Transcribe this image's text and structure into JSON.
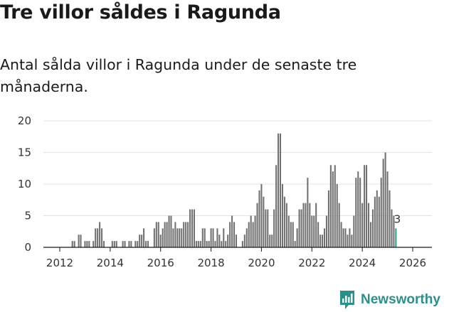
{
  "title": "Tre villor såldes i Ragunda",
  "subtitle": "Antal sålda villor i Ragunda under de senaste tre månaderna.",
  "brand": {
    "name": "Newsworthy",
    "icon": "newsworthy-logo-icon",
    "color": "#2c8f8a"
  },
  "chart_data": {
    "type": "bar",
    "title": "Tre villor såldes i Ragunda",
    "xlabel": "",
    "ylabel": "",
    "ylim": [
      0,
      20
    ],
    "yticks": [
      0,
      5,
      10,
      15,
      20
    ],
    "xticks": [
      "2012",
      "2014",
      "2016",
      "2018",
      "2020",
      "2022",
      "2024",
      "2026"
    ],
    "grid": true,
    "start": "2011-06",
    "colors": {
      "bar": "#707070",
      "highlight": "#2e9a94"
    },
    "highlight_label": "3",
    "values": [
      0,
      0,
      0,
      0,
      0,
      0,
      0,
      0,
      0,
      0,
      0,
      0,
      0,
      1,
      1,
      0,
      2,
      2,
      0,
      1,
      1,
      1,
      0,
      1,
      3,
      3,
      4,
      3,
      1,
      0,
      0,
      0,
      1,
      1,
      1,
      0,
      0,
      1,
      1,
      0,
      1,
      1,
      0,
      1,
      1,
      2,
      2,
      3,
      1,
      1,
      0,
      0,
      3,
      4,
      4,
      2,
      3,
      4,
      4,
      5,
      5,
      3,
      4,
      3,
      3,
      3,
      4,
      4,
      4,
      6,
      6,
      6,
      1,
      1,
      1,
      3,
      3,
      1,
      1,
      3,
      3,
      1,
      3,
      2,
      1,
      3,
      1,
      2,
      4,
      5,
      4,
      2,
      0,
      0,
      1,
      2,
      3,
      4,
      5,
      4,
      5,
      7,
      9,
      10,
      8,
      6,
      6,
      2,
      2,
      6,
      13,
      18,
      18,
      10,
      8,
      7,
      5,
      4,
      4,
      1,
      3,
      6,
      6,
      7,
      7,
      11,
      7,
      5,
      5,
      7,
      4,
      2,
      2,
      3,
      5,
      9,
      13,
      12,
      13,
      10,
      7,
      4,
      3,
      3,
      2,
      3,
      2,
      5,
      11,
      12,
      11,
      7,
      13,
      13,
      7,
      4,
      6,
      8,
      9,
      8,
      11,
      14,
      15,
      12,
      9,
      6,
      5,
      3
    ]
  }
}
